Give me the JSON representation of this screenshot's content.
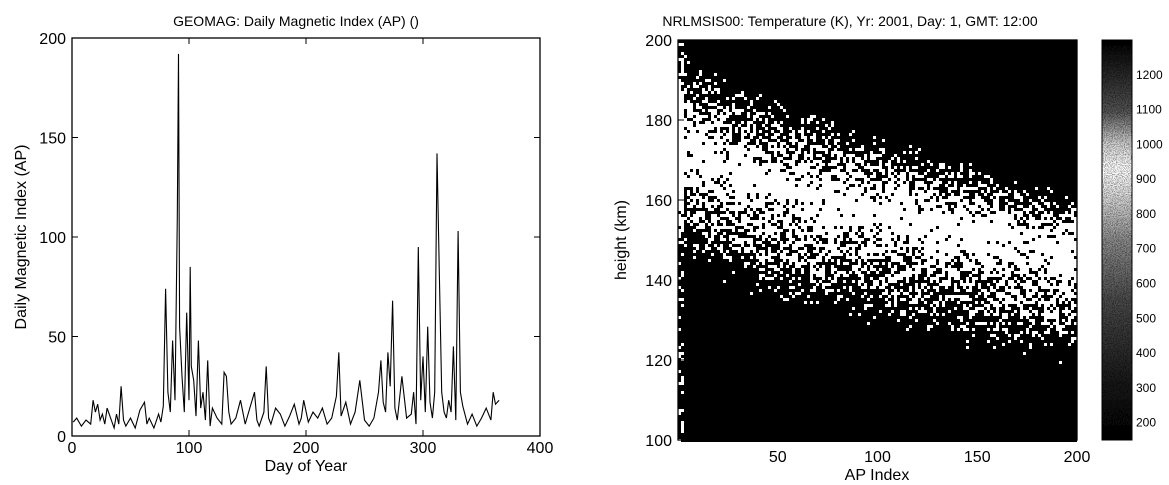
{
  "chart_data": [
    {
      "type": "line",
      "title": "GEOMAG: Daily Magnetic Index (AP) ()",
      "xlabel": "Day of Year",
      "ylabel": "Daily Magnetic Index (AP)",
      "xlim": [
        0,
        400
      ],
      "ylim": [
        0,
        200
      ],
      "xticks": [
        "0",
        "100",
        "200",
        "300",
        "400"
      ],
      "yticks": [
        "0",
        "50",
        "100",
        "150",
        "200"
      ],
      "grid": false,
      "series": [
        {
          "x": [
            1,
            4,
            8,
            12,
            16,
            18,
            20,
            22,
            24,
            26,
            28,
            30,
            33,
            36,
            38,
            40,
            42,
            44,
            46,
            50,
            54,
            58,
            62,
            64,
            66,
            70,
            74,
            76,
            78,
            80,
            82,
            84,
            86,
            88,
            90,
            91,
            92,
            94,
            96,
            98,
            100,
            101,
            102,
            104,
            106,
            108,
            110,
            112,
            114,
            116,
            118,
            120,
            124,
            128,
            130,
            132,
            134,
            136,
            140,
            144,
            148,
            152,
            156,
            158,
            160,
            164,
            166,
            168,
            170,
            174,
            178,
            182,
            186,
            190,
            194,
            196,
            198,
            202,
            206,
            210,
            214,
            218,
            222,
            226,
            228,
            230,
            234,
            238,
            242,
            246,
            250,
            254,
            258,
            262,
            264,
            266,
            268,
            270,
            272,
            274,
            276,
            278,
            282,
            286,
            290,
            292,
            294,
            296,
            298,
            300,
            302,
            304,
            306,
            308,
            310,
            312,
            314,
            316,
            318,
            320,
            322,
            324,
            326,
            328,
            330,
            332,
            334,
            338,
            342,
            346,
            350,
            354,
            358,
            360,
            362,
            365
          ],
          "y": [
            7,
            9,
            5,
            8,
            6,
            18,
            12,
            16,
            8,
            11,
            6,
            14,
            9,
            4,
            11,
            6,
            25,
            8,
            5,
            9,
            4,
            13,
            17,
            6,
            9,
            4,
            11,
            7,
            15,
            74,
            22,
            12,
            48,
            18,
            110,
            192,
            55,
            30,
            12,
            62,
            18,
            85,
            35,
            28,
            10,
            48,
            14,
            22,
            8,
            38,
            5,
            14,
            9,
            6,
            32,
            30,
            12,
            6,
            9,
            18,
            6,
            14,
            22,
            8,
            5,
            12,
            35,
            9,
            6,
            14,
            11,
            5,
            10,
            16,
            6,
            9,
            18,
            7,
            12,
            9,
            14,
            6,
            9,
            20,
            42,
            10,
            17,
            6,
            12,
            28,
            8,
            5,
            9,
            22,
            38,
            17,
            12,
            42,
            25,
            68,
            14,
            8,
            30,
            9,
            11,
            22,
            6,
            95,
            18,
            40,
            12,
            55,
            17,
            9,
            22,
            142,
            80,
            22,
            12,
            9,
            18,
            12,
            45,
            8,
            103,
            22,
            15,
            6,
            11,
            5,
            9,
            14,
            8,
            22,
            16,
            18
          ]
        }
      ]
    },
    {
      "type": "heatmap",
      "title": "NRLMSIS00: Temperature (K),  Yr: 2001,  Day: 1,  GMT: 12:00",
      "xlabel": "AP Index",
      "ylabel": "height (km)",
      "xlim": [
        0,
        200
      ],
      "ylim": [
        100,
        200
      ],
      "xticks": [
        "50",
        "100",
        "150",
        "200"
      ],
      "yticks": [
        "100",
        "120",
        "140",
        "160",
        "180",
        "200"
      ],
      "colorbar_ticks": [
        "200",
        "300",
        "400",
        "500",
        "600",
        "700",
        "800",
        "900",
        "1000",
        "1100",
        "1200"
      ],
      "colorbar_range": [
        150,
        1300
      ],
      "z_description_values": {
        "temperature_at_100km": 200,
        "white_band_height_at_ap_0": 178,
        "white_band_height_at_ap_200": 148
      }
    }
  ]
}
